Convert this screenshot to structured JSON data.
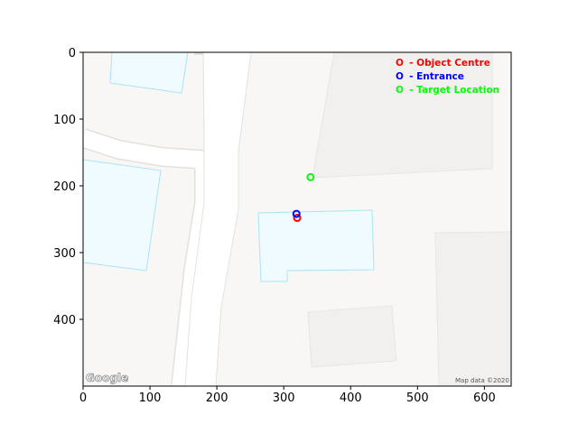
{
  "map": {
    "attribution": "Map data ©2020",
    "provider_logo": "Google",
    "colors": {
      "background": "#f8f7f5",
      "road": "#ffffff",
      "road_edge": "#e4e1dd",
      "building_fill": "#f0fbff",
      "building_stroke": "#a9e4f4",
      "block_fill": "#f1f0ef",
      "block_stroke": "#e7e6e4"
    }
  },
  "axes": {
    "x_ticks": [
      "0",
      "100",
      "200",
      "300",
      "400",
      "500",
      "600"
    ],
    "y_ticks": [
      "0",
      "100",
      "200",
      "300",
      "400"
    ],
    "xlim": [
      0,
      640
    ],
    "ylim": [
      500,
      0
    ]
  },
  "legend": {
    "items": [
      {
        "marker": "O",
        "label": "- Object Centre",
        "color": "#ff0000"
      },
      {
        "marker": "O",
        "label": "- Entrance",
        "color": "#0000ff"
      },
      {
        "marker": "O",
        "label": "- Target Location",
        "color": "#00ff00"
      }
    ]
  },
  "markers": [
    {
      "name": "object-centre-marker",
      "x": 320,
      "y": 248,
      "color": "#ff0000"
    },
    {
      "name": "entrance-marker",
      "x": 319,
      "y": 242,
      "color": "#0000ff"
    },
    {
      "name": "target-location-marker",
      "x": 340,
      "y": 187,
      "color": "#00ff00"
    }
  ]
}
